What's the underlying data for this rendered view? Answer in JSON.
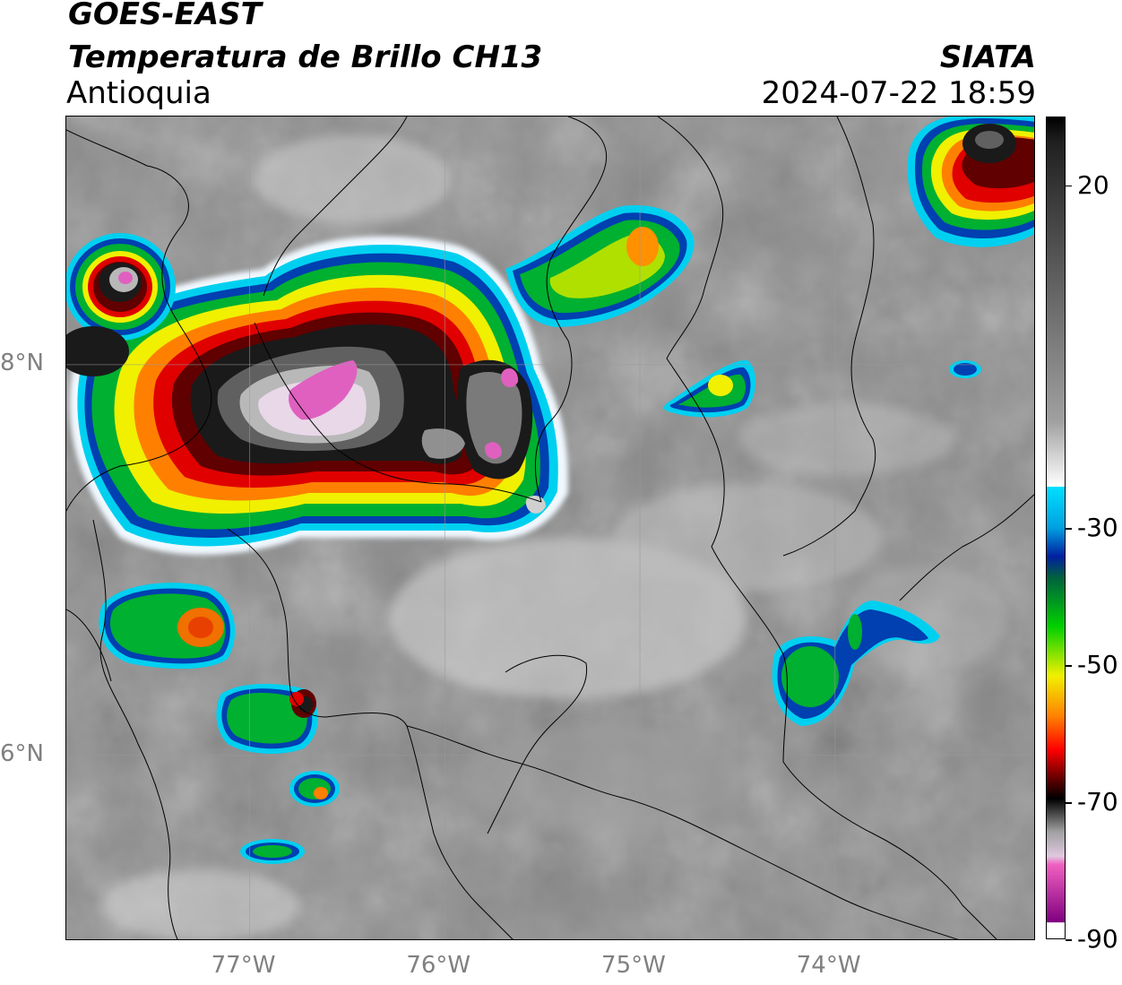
{
  "header": {
    "satellite": "GOES-EAST",
    "product": "Temperatura de Brillo CH13",
    "region": "Antioquia",
    "organization": "SIATA",
    "timestamp": "2024-07-22 18:59"
  },
  "map": {
    "lat_labels": [
      "8°N",
      "6°N"
    ],
    "lon_labels": [
      "77°W",
      "76°W",
      "75°W",
      "74°W"
    ],
    "lat_values": [
      8,
      6
    ],
    "lon_values": [
      -77,
      -76,
      -75,
      -74
    ],
    "lat_range": [
      5.05,
      9.27
    ],
    "lon_range": [
      -77.94,
      -72.97
    ]
  },
  "colorbar": {
    "tick_labels": [
      "20",
      "-30",
      "-50",
      "-70",
      "-90"
    ],
    "tick_values": [
      20,
      -30,
      -50,
      -70,
      -90
    ],
    "range": [
      -90,
      30
    ],
    "colors": {
      "cyan": "#00d8f0",
      "blue": "#0030a0",
      "green": "#00c020",
      "yellow": "#f0f000",
      "orange": "#ff8000",
      "red": "#e00000",
      "darkred": "#600000",
      "black": "#000000",
      "pink": "#e060c0",
      "purple": "#800080"
    }
  }
}
